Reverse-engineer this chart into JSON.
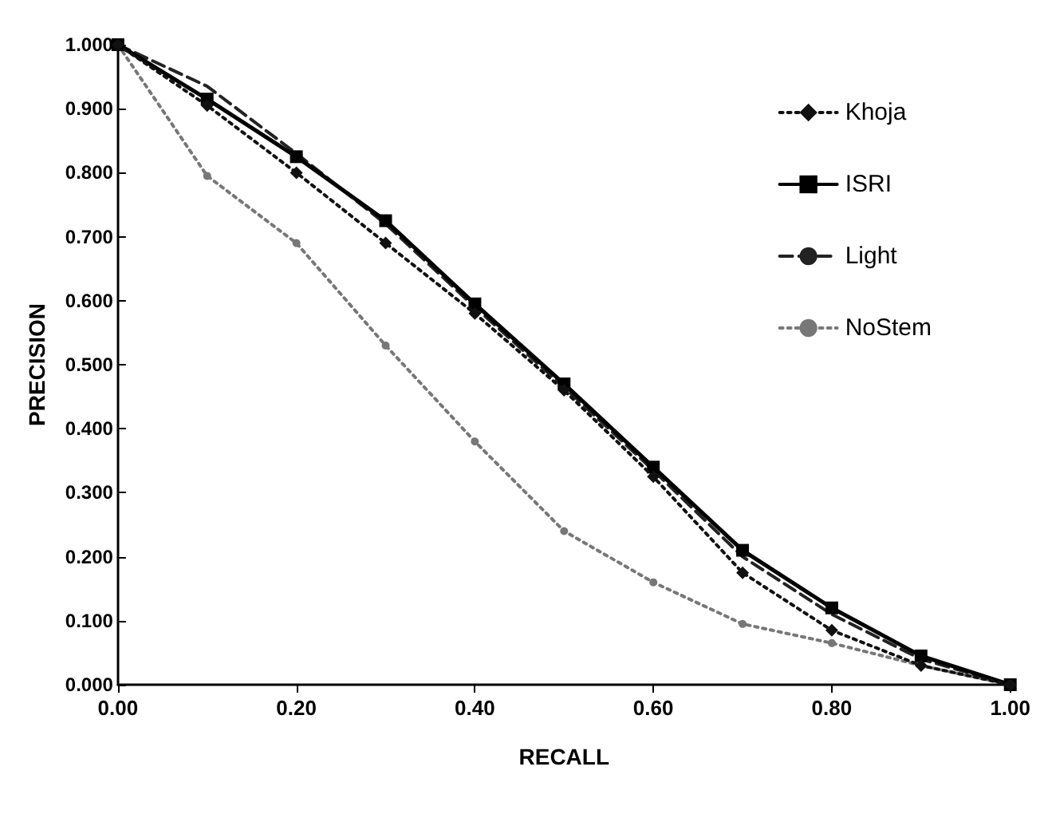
{
  "chart_data": {
    "type": "line",
    "xlabel": "RECALL",
    "ylabel": "PRECISION",
    "x": [
      0,
      0.1,
      0.2,
      0.3,
      0.4,
      0.5,
      0.6,
      0.7,
      0.8,
      0.9,
      1.0
    ],
    "series": [
      {
        "name": "Khoja",
        "color": "#111111",
        "marker": "diamond",
        "line_style": "dotted",
        "values": [
          1.0,
          0.905,
          0.8,
          0.69,
          0.58,
          0.46,
          0.325,
          0.175,
          0.085,
          0.03,
          0.0
        ]
      },
      {
        "name": "ISRI",
        "color": "#000000",
        "marker": "square",
        "line_style": "solid",
        "values": [
          1.0,
          0.915,
          0.825,
          0.725,
          0.595,
          0.47,
          0.34,
          0.21,
          0.12,
          0.045,
          0.0
        ]
      },
      {
        "name": "Light",
        "color": "#222222",
        "marker": "none",
        "line_style": "dashed",
        "values": [
          1.0,
          0.935,
          0.83,
          0.72,
          0.59,
          0.465,
          0.335,
          0.2,
          0.11,
          0.04,
          0.0
        ]
      },
      {
        "name": "NoStem",
        "color": "#777777",
        "marker": "circle",
        "line_style": "dotted",
        "values": [
          1.0,
          0.795,
          0.69,
          0.53,
          0.38,
          0.24,
          0.16,
          0.095,
          0.065,
          0.03,
          0.0
        ]
      }
    ],
    "xlim": [
      0,
      1
    ],
    "xticks": [
      {
        "value": 0,
        "label": "0.00"
      },
      {
        "value": 0.2,
        "label": "0.20"
      },
      {
        "value": 0.4,
        "label": "0.40"
      },
      {
        "value": 0.6,
        "label": "0.60"
      },
      {
        "value": 0.8,
        "label": "0.80"
      },
      {
        "value": 1,
        "label": "1.00"
      }
    ],
    "ylim": [
      0,
      1
    ],
    "yticks": [
      {
        "value": 0,
        "label": "0.000"
      },
      {
        "value": 0.1,
        "label": "0.100"
      },
      {
        "value": 0.2,
        "label": "0.200"
      },
      {
        "value": 0.3,
        "label": "0.300"
      },
      {
        "value": 0.4,
        "label": "0.400"
      },
      {
        "value": 0.5,
        "label": "0.500"
      },
      {
        "value": 0.6,
        "label": "0.600"
      },
      {
        "value": 0.7,
        "label": "0.700"
      },
      {
        "value": 0.8,
        "label": "0.800"
      },
      {
        "value": 0.9,
        "label": "0.900"
      },
      {
        "value": 1,
        "label": "1.000"
      }
    ],
    "grid": false,
    "legend": "top right"
  }
}
